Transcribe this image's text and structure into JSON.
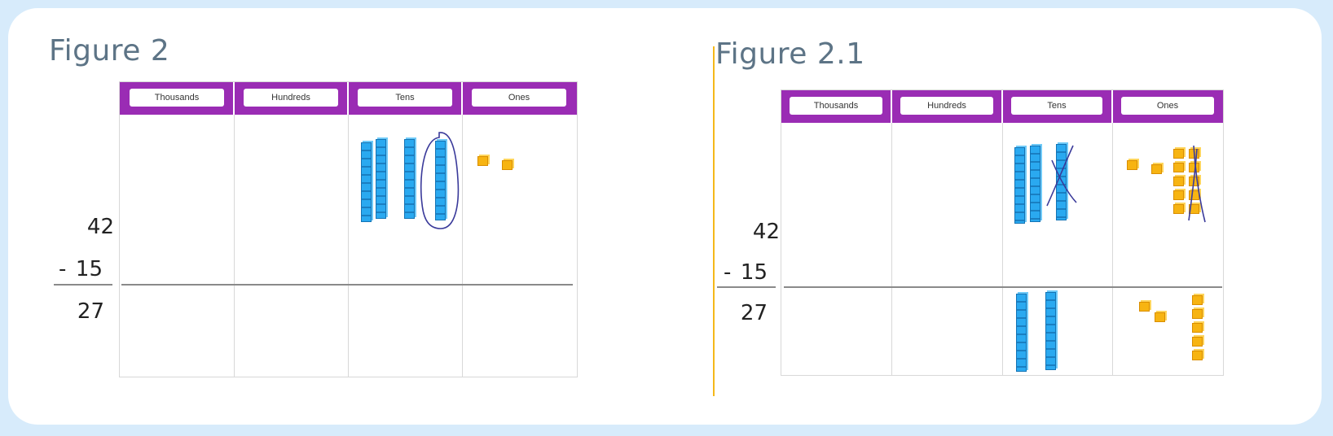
{
  "figures": [
    {
      "title": "Figure 2",
      "columns": [
        "Thousands",
        "Hundreds",
        "Tens",
        "Ones"
      ],
      "minuend": "42",
      "operator": "-",
      "subtrahend": "15",
      "difference": "27"
    },
    {
      "title": "Figure 2.1",
      "columns": [
        "Thousands",
        "Hundreds",
        "Tens",
        "Ones"
      ],
      "minuend": "42",
      "operator": "-",
      "subtrahend": "15",
      "difference": "27"
    }
  ],
  "colors": {
    "header": "#9a2cb4",
    "rod": "#2aa9f0",
    "cube": "#f7b412",
    "annotation": "#3a3a9a",
    "divider": "#f5b81a"
  }
}
